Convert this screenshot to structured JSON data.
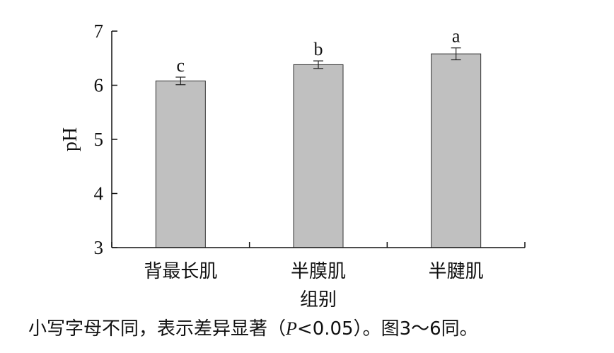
{
  "chart_data": {
    "type": "bar",
    "categories": [
      "背最长肌",
      "半膜肌",
      "半腱肌"
    ],
    "values": [
      6.08,
      6.38,
      6.58
    ],
    "errors": [
      0.07,
      0.07,
      0.11
    ],
    "significance_letters": [
      "c",
      "b",
      "a"
    ],
    "xlabel": "组别",
    "ylabel": "pH",
    "ylim": [
      3,
      7
    ],
    "yticks": [
      "3",
      "4",
      "5",
      "6",
      "7"
    ],
    "bar_color": "#c0c0c0",
    "bar_edge_color": "#333333",
    "axis_color": "#111111",
    "grid": false
  },
  "footnote": {
    "before": "小写字母不同，表示差异显著（",
    "italic": "P",
    "after": "<0.05）。图3～6同。"
  }
}
